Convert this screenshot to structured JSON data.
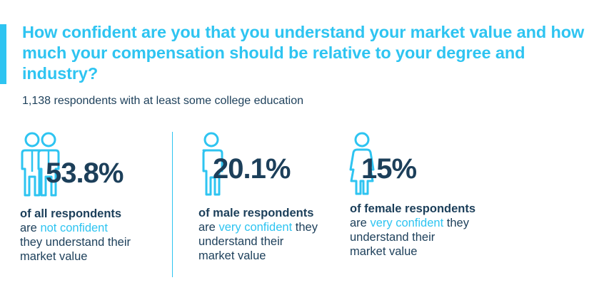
{
  "title": "How confident are you that you understand your market value and how much your compensation should be relative to your degree and industry?",
  "subtitle": "1,138 respondents with at least some college education",
  "colors": {
    "accent": "#2ec4f1",
    "text": "#1c3f5a",
    "icon_fill": "#ffffff"
  },
  "stats": [
    {
      "icon": "two-people-icon",
      "percent": "53.8%",
      "group": "of all respondents",
      "are": "are",
      "highlight": "not confident",
      "rest_inline": "",
      "rest": "they understand their market value"
    },
    {
      "icon": "man-icon",
      "percent": "20.1%",
      "group": "of male respondents",
      "are": "are",
      "highlight": "very confident",
      "rest_inline": "they",
      "rest": "understand their market value"
    },
    {
      "icon": "woman-icon",
      "percent": "15%",
      "group": "of female respondents",
      "are": "are",
      "highlight": "very confident",
      "rest_inline": "they",
      "rest": "understand their market value"
    }
  ],
  "chart_data": {
    "type": "table",
    "title": "How confident are you that you understand your market value and how much your compensation should be relative to your degree and industry?",
    "subtitle": "1,138 respondents with at least some college education",
    "categories": [
      "of all respondents",
      "of male respondents",
      "of female respondents"
    ],
    "values": [
      53.8,
      20.1,
      15
    ],
    "labels": [
      "53.8%",
      "20.1%",
      "15%"
    ],
    "annotations": [
      "not confident",
      "very confident",
      "very confident"
    ]
  }
}
